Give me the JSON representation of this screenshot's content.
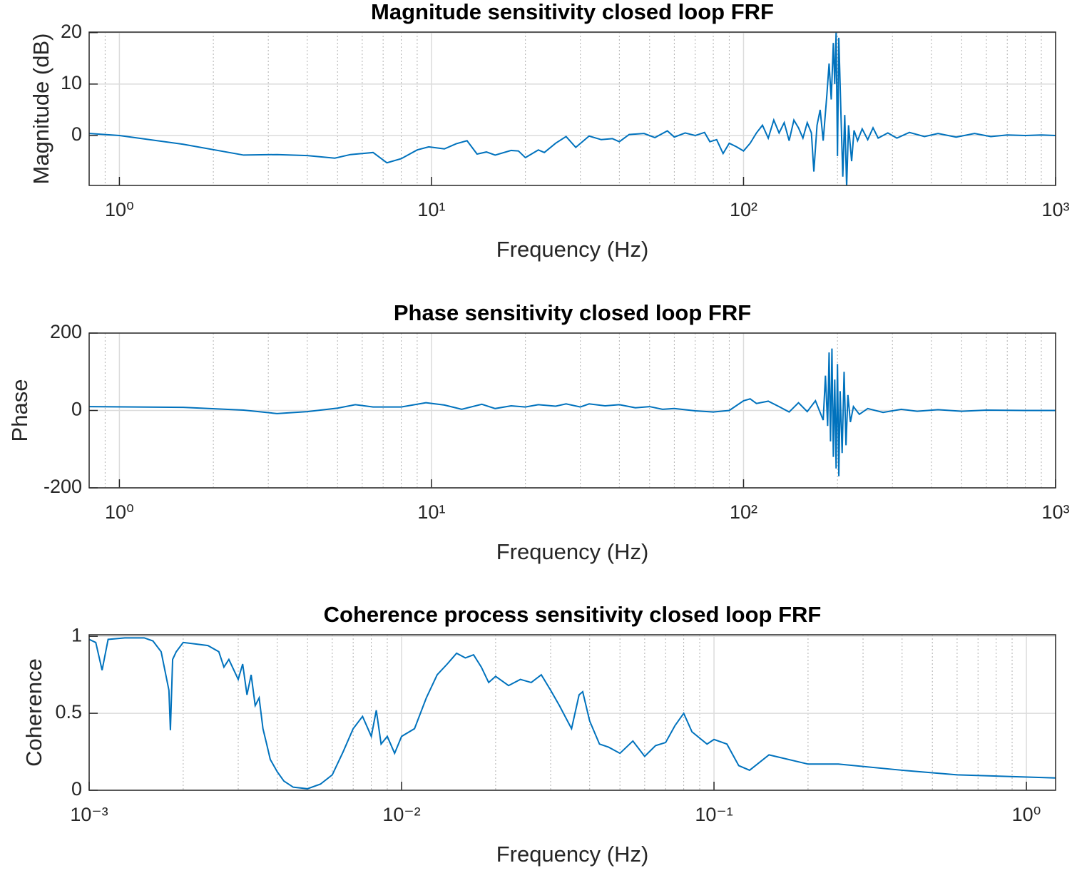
{
  "chart_data": [
    {
      "type": "line",
      "title": "Magnitude sensitivity closed loop FRF",
      "xlabel": "Frequency (Hz)",
      "ylabel": "Magnitude (dB)",
      "xscale": "log",
      "grid": true,
      "xlim": [
        0.8,
        1000
      ],
      "ylim": [
        -9.7,
        20.1
      ],
      "xticks": [
        {
          "value": 1,
          "label": "10⁰"
        },
        {
          "value": 10,
          "label": "10¹"
        },
        {
          "value": 100,
          "label": "10²"
        },
        {
          "value": 1000,
          "label": "10³"
        }
      ],
      "yticks": [
        0,
        10,
        20
      ],
      "x": [
        0.8,
        1,
        1.6,
        2.5,
        3.2,
        4,
        4.9,
        5.5,
        6.5,
        7.2,
        8,
        9,
        9.8,
        11,
        12,
        13,
        14,
        15,
        16,
        18,
        19,
        20,
        22,
        23,
        25,
        27,
        29,
        32,
        35,
        38,
        40,
        43,
        48,
        52,
        57,
        60,
        65,
        70,
        75,
        78,
        82,
        86,
        90,
        95,
        100,
        105,
        110,
        115,
        120,
        125,
        130,
        135,
        140,
        145,
        150,
        155,
        160,
        165,
        168,
        172,
        176,
        180,
        185,
        188,
        191,
        194,
        196,
        198,
        200,
        202,
        205,
        208,
        211,
        214,
        217,
        222,
        226,
        232,
        240,
        250,
        260,
        270,
        290,
        310,
        340,
        380,
        420,
        480,
        550,
        620,
        700,
        800,
        900,
        1000
      ],
      "series": [
        {
          "color": "#0072bd",
          "values": [
            0.4,
            0,
            -1.7,
            -3.8,
            -3.7,
            -3.9,
            -4.4,
            -3.7,
            -3.3,
            -5.3,
            -4.5,
            -2.8,
            -2.2,
            -2.6,
            -1.6,
            -1.0,
            -3.6,
            -3.2,
            -3.8,
            -2.9,
            -3.0,
            -4.3,
            -2.8,
            -3.3,
            -1.5,
            -0.2,
            -2.3,
            -0.1,
            -0.8,
            -0.6,
            -1.2,
            0.2,
            0.4,
            -0.4,
            0.9,
            -0.3,
            0.5,
            0,
            0.6,
            -1.2,
            -0.8,
            -3.5,
            -1.5,
            -2.2,
            -3,
            -1.5,
            0.5,
            2,
            -0.5,
            3,
            0.5,
            2.5,
            -1,
            3,
            1.5,
            -0.5,
            2.5,
            0.5,
            -7,
            2,
            5,
            -1,
            8,
            14,
            7,
            18,
            10,
            20,
            -4,
            19,
            5,
            -8,
            4,
            -10,
            2,
            -5,
            1,
            -1,
            1.3,
            -0.8,
            1.5,
            -0.5,
            0.5,
            -0.5,
            0.6,
            -0.2,
            0.4,
            -0.3,
            0.4,
            -0.2,
            0.1,
            0,
            0.1,
            0
          ]
        }
      ]
    },
    {
      "type": "line",
      "title": "Phase sensitivity closed loop FRF",
      "xlabel": "Frequency (Hz)",
      "ylabel": "Phase",
      "xscale": "log",
      "grid": true,
      "xlim": [
        0.8,
        1000
      ],
      "ylim": [
        -200,
        200
      ],
      "xticks": [
        {
          "value": 1,
          "label": "10⁰"
        },
        {
          "value": 10,
          "label": "10¹"
        },
        {
          "value": 100,
          "label": "10²"
        },
        {
          "value": 1000,
          "label": "10³"
        }
      ],
      "yticks": [
        -200,
        0,
        200
      ],
      "x": [
        0.8,
        1.6,
        2.5,
        3.2,
        4,
        5,
        5.7,
        6.5,
        8,
        9.6,
        11,
        12.5,
        14.5,
        16,
        18,
        20,
        22,
        25,
        27,
        30,
        32,
        36,
        40,
        45,
        50,
        55,
        60,
        70,
        80,
        90,
        100,
        105,
        110,
        120,
        130,
        140,
        150,
        160,
        170,
        180,
        183,
        186,
        188,
        190,
        192,
        194,
        196,
        198,
        200,
        202,
        204,
        207,
        210,
        213,
        216,
        220,
        225,
        235,
        250,
        280,
        320,
        360,
        420,
        500,
        600,
        800,
        1000
      ],
      "series": [
        {
          "color": "#0072bd",
          "values": [
            10,
            8,
            1,
            -8,
            -3,
            6,
            15,
            9,
            9,
            20,
            14,
            3,
            16,
            5,
            12,
            9,
            15,
            11,
            17,
            9,
            17,
            12,
            15,
            7,
            10,
            3,
            5,
            -1,
            -4,
            0,
            25,
            30,
            18,
            24,
            10,
            -4,
            20,
            -3,
            25,
            -25,
            90,
            -40,
            150,
            -80,
            160,
            -120,
            80,
            -150,
            120,
            -170,
            50,
            -110,
            100,
            -90,
            40,
            -30,
            10,
            -10,
            5,
            -5,
            3,
            -2,
            2,
            -2,
            1,
            0,
            0
          ]
        }
      ]
    },
    {
      "type": "line",
      "title": "Coherence process sensitivity closed loop FRF",
      "xlabel": "Frequency (Hz)",
      "ylabel": "Coherence",
      "xscale": "log",
      "grid": true,
      "xlim": [
        0.001,
        1.24
      ],
      "ylim": [
        0,
        1.01
      ],
      "xticks": [
        {
          "value": 0.001,
          "label": "10⁻³"
        },
        {
          "value": 0.01,
          "label": "10⁻²"
        },
        {
          "value": 0.1,
          "label": "10⁻¹"
        },
        {
          "value": 1,
          "label": "10⁰"
        }
      ],
      "yticks": [
        0,
        0.5,
        1
      ],
      "x": [
        0.001,
        0.00105,
        0.0011,
        0.00115,
        0.0013,
        0.0015,
        0.0016,
        0.0017,
        0.0018,
        0.00182,
        0.00185,
        0.0019,
        0.002,
        0.0022,
        0.0024,
        0.0026,
        0.0027,
        0.0028,
        0.003,
        0.0031,
        0.0032,
        0.0033,
        0.0034,
        0.0035,
        0.0036,
        0.0037,
        0.0038,
        0.004,
        0.0042,
        0.0045,
        0.005,
        0.0055,
        0.006,
        0.0065,
        0.007,
        0.0075,
        0.008,
        0.0083,
        0.0086,
        0.009,
        0.0095,
        0.01,
        0.011,
        0.012,
        0.013,
        0.014,
        0.015,
        0.016,
        0.017,
        0.018,
        0.019,
        0.02,
        0.022,
        0.024,
        0.026,
        0.028,
        0.03,
        0.032,
        0.035,
        0.037,
        0.038,
        0.04,
        0.043,
        0.046,
        0.05,
        0.055,
        0.06,
        0.065,
        0.07,
        0.075,
        0.08,
        0.085,
        0.095,
        0.1,
        0.11,
        0.12,
        0.13,
        0.15,
        0.2,
        0.25,
        0.4,
        0.6,
        1.24
      ],
      "series": [
        {
          "color": "#0072bd",
          "values": [
            0.98,
            0.96,
            0.78,
            0.98,
            0.99,
            0.99,
            0.97,
            0.9,
            0.65,
            0.39,
            0.85,
            0.9,
            0.96,
            0.95,
            0.94,
            0.9,
            0.8,
            0.85,
            0.72,
            0.82,
            0.62,
            0.75,
            0.55,
            0.6,
            0.4,
            0.3,
            0.2,
            0.12,
            0.06,
            0.02,
            0.01,
            0.04,
            0.1,
            0.25,
            0.4,
            0.48,
            0.35,
            0.52,
            0.3,
            0.35,
            0.24,
            0.35,
            0.4,
            0.6,
            0.75,
            0.82,
            0.89,
            0.86,
            0.88,
            0.8,
            0.7,
            0.74,
            0.68,
            0.72,
            0.7,
            0.75,
            0.65,
            0.55,
            0.4,
            0.62,
            0.64,
            0.45,
            0.3,
            0.28,
            0.24,
            0.32,
            0.22,
            0.29,
            0.31,
            0.42,
            0.5,
            0.38,
            0.3,
            0.33,
            0.3,
            0.16,
            0.13,
            0.23,
            0.17,
            0.17,
            0.13,
            0.1,
            0.08
          ]
        }
      ]
    }
  ]
}
